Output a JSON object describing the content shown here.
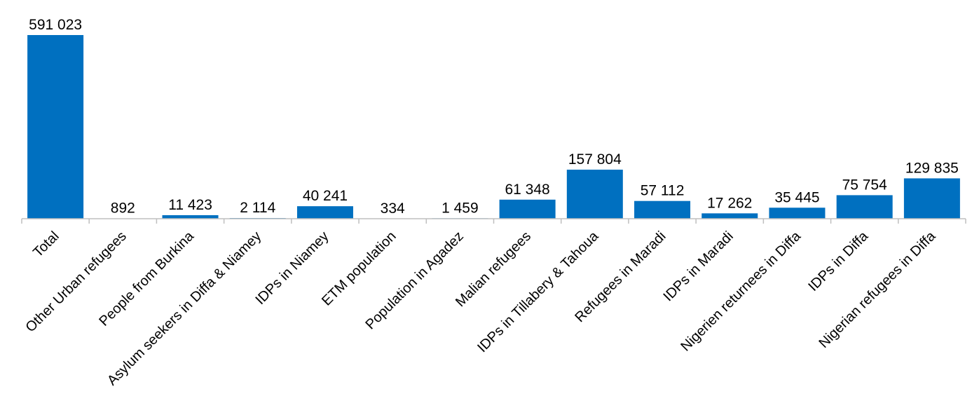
{
  "chart_data": {
    "type": "bar",
    "title": "",
    "xlabel": "",
    "ylabel": "",
    "categories": [
      "Total",
      "Other Urban refugees",
      "People from Burkina",
      "Asylum seekers in Diffa & Niamey",
      "IDPs in Niamey",
      "ETM population",
      "Population in Agadez",
      "Malian refugees",
      "IDPs in Tillabery & Tahoua",
      "Refugees in Maradi",
      "IDPs in Maradi",
      "Nigerien returnees in Diffa",
      "IDPs in Diffa",
      "Nigerian refugees in Diffa"
    ],
    "values": [
      591023,
      892,
      11423,
      2114,
      40241,
      334,
      1459,
      61348,
      157804,
      57112,
      17262,
      35445,
      75754,
      129835
    ],
    "value_labels": [
      "591 023",
      "892",
      "11 423",
      "2 114",
      "40 241",
      "334",
      "1 459",
      "61 348",
      "157 804",
      "57 112",
      "17 262",
      "35 445",
      "75 754",
      "129 835"
    ],
    "ylim": [
      0,
      591023
    ],
    "grid": false,
    "legend": "none",
    "bar_color": "#0070c0",
    "axis_color": "#bfbfbf",
    "label_color": "#000000"
  }
}
